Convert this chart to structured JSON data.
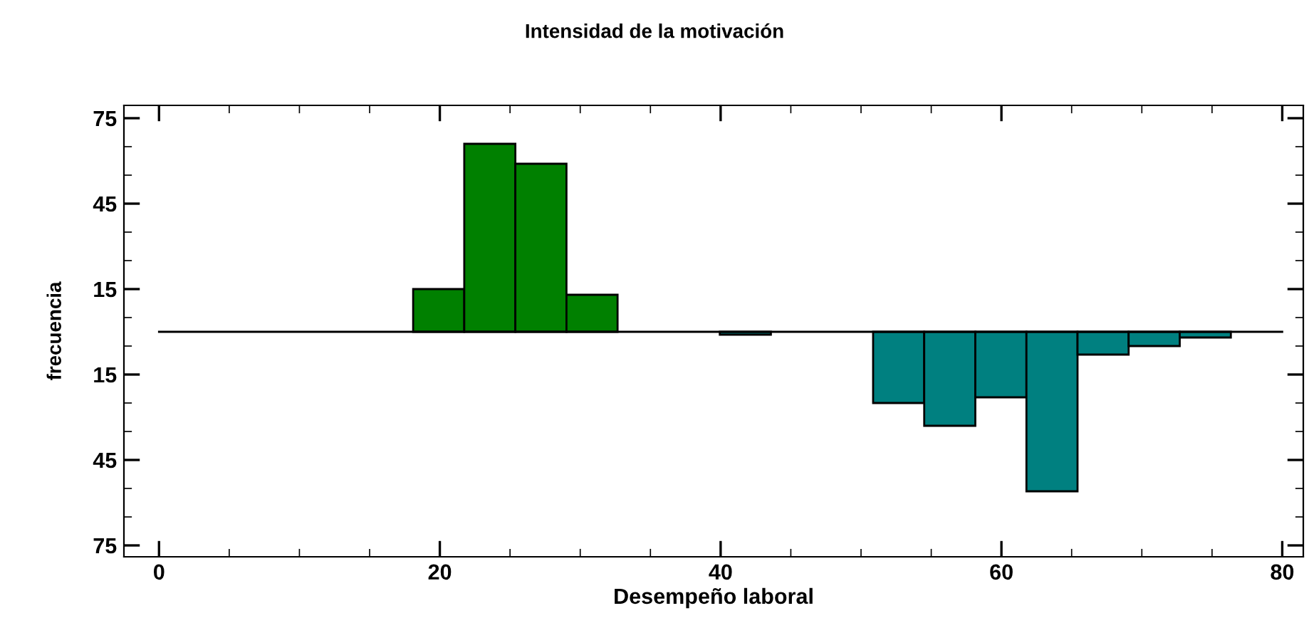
{
  "chart_data": {
    "type": "histogram",
    "title": "Intensidad de la motivación",
    "xlabel": "Desempeño laboral",
    "ylabel": "frecuencia",
    "bins": [
      18.1,
      21.74,
      25.38,
      29.02,
      32.66,
      36.3,
      39.94,
      43.58,
      47.22,
      50.86,
      54.5,
      58.14,
      61.78,
      65.42,
      69.06,
      72.7,
      76.34
    ],
    "series": [
      {
        "color": "#008000",
        "values": [
          15,
          66,
          59,
          13,
          null,
          null,
          null,
          null,
          null,
          null,
          null,
          null,
          null,
          null,
          null,
          null
        ]
      },
      {
        "color": "#008080",
        "values": [
          null,
          null,
          null,
          null,
          null,
          null,
          -1,
          null,
          null,
          -25,
          -33,
          -23,
          -56,
          -8,
          -5,
          -2
        ]
      }
    ],
    "xlim": [
      -2.5,
      81.5
    ],
    "xticks": [
      0,
      20,
      40,
      60,
      80
    ],
    "ylim": [
      -79,
      79.5
    ],
    "yticks": [
      {
        "value": -75,
        "label": "75"
      },
      {
        "value": -45,
        "label": "45"
      },
      {
        "value": -15,
        "label": "15"
      },
      {
        "value": 15,
        "label": "15"
      },
      {
        "value": 45,
        "label": "45"
      },
      {
        "value": 75,
        "label": "75"
      }
    ],
    "ref_lines": [
      {
        "axis": "y",
        "value": 0,
        "color": "#000000"
      }
    ],
    "grid": false,
    "legend": false
  }
}
